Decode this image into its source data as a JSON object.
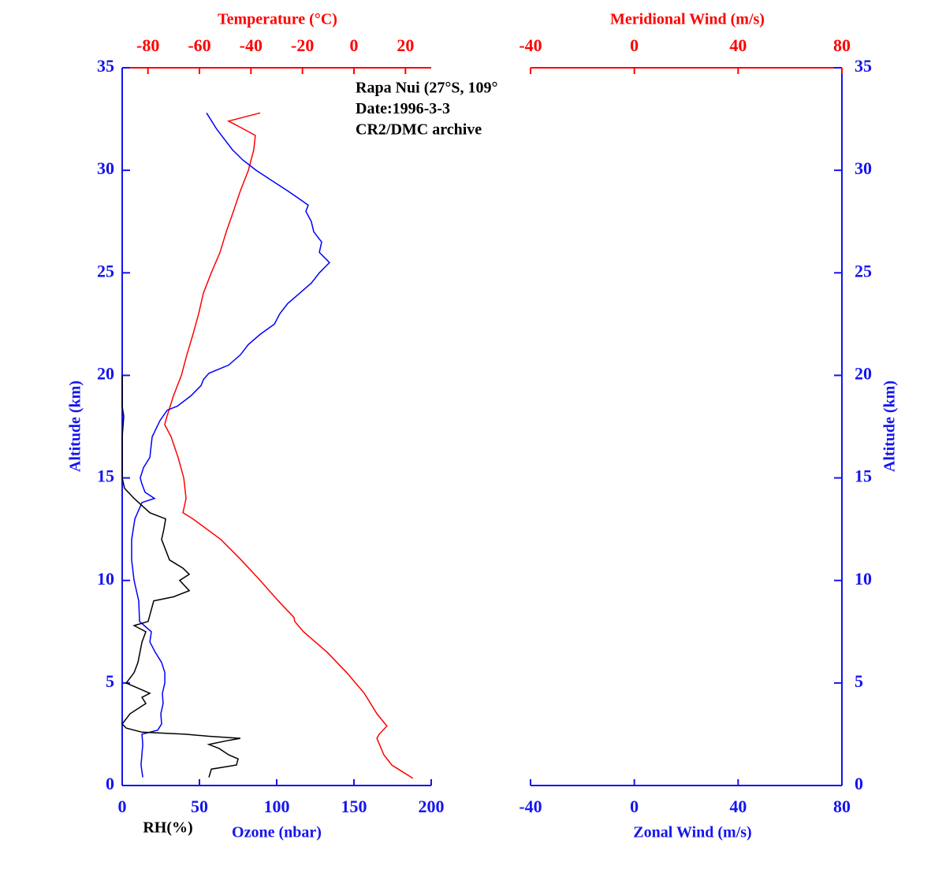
{
  "chart_data": [
    {
      "type": "line",
      "ylabel": "Altitude (km)",
      "ylim": [
        0,
        35
      ],
      "yticks": [
        0,
        5,
        10,
        15,
        20,
        25,
        30,
        35
      ],
      "xlabel": "Ozone (nbar)",
      "xlim": [
        0,
        200
      ],
      "xticks": [
        0,
        50,
        100,
        150,
        200
      ],
      "x2label": "Temperature (°C)",
      "x2lim": [
        -90,
        30
      ],
      "x2ticks": [
        -80,
        -60,
        -40,
        -20,
        0,
        20
      ],
      "annotations": [
        "Rapa Nui (27°S, 109°",
        "Date:1996-3-3",
        "CR2/DMC archive"
      ],
      "series": [
        {
          "color": "#ff0000",
          "axis": "x2",
          "y": [
            0.35,
            1.0,
            1.5,
            2.3,
            2.5,
            2.9,
            3.5,
            4.5,
            5.5,
            6.5,
            7.5,
            8.0,
            8.2,
            9,
            10,
            11,
            12,
            13,
            13.3,
            14,
            15,
            16,
            17,
            17.6,
            18,
            18.4,
            19,
            20,
            21,
            22,
            23,
            24,
            25,
            26,
            27,
            28,
            29,
            30,
            31,
            31.7,
            32.2,
            32.4,
            32.8
          ],
          "x": [
            22.9,
            14.7,
            11.6,
            8.9,
            9.8,
            12.8,
            8.9,
            4.0,
            -2.8,
            -10.4,
            -19.6,
            -23,
            -23.3,
            -29.4,
            -36.4,
            -43.8,
            -51.7,
            -62.5,
            -66.4,
            -65.2,
            -66.1,
            -68.3,
            -71,
            -73.5,
            -72.6,
            -71.6,
            -70.1,
            -67,
            -64.9,
            -62.5,
            -60.3,
            -58.5,
            -55.4,
            -52,
            -49.6,
            -46.8,
            -44.1,
            -41,
            -38.9,
            -38.3,
            -45.6,
            -48.7,
            -36.4
          ]
        },
        {
          "color": "#0000ff",
          "axis": "x",
          "y": [
            0.4,
            1,
            2,
            2.5,
            2.7,
            3,
            3.5,
            4,
            4.5,
            5,
            5.5,
            6,
            6.5,
            7,
            7.5,
            7.8,
            8,
            9,
            10,
            11,
            12,
            13,
            13.8,
            14,
            14.3,
            14.7,
            15,
            15.5,
            16,
            17,
            17.8,
            18.3,
            18.5,
            19,
            19.5,
            19.8,
            20.1,
            20.5,
            21,
            21.5,
            22,
            22.5,
            23,
            23.5,
            24,
            24.5,
            25,
            25.5,
            26,
            26.5,
            27,
            27.5,
            28,
            28.3,
            28.6,
            29,
            29.5,
            30,
            30.5,
            31,
            31.5,
            32,
            32.8
          ],
          "x": [
            13.3,
            12.2,
            13.3,
            12.8,
            23.0,
            25.5,
            25.0,
            26.5,
            26.0,
            27.6,
            27.6,
            25.5,
            21.4,
            17.9,
            18.9,
            14.3,
            11.2,
            10.7,
            7.7,
            6.1,
            6.1,
            8.2,
            12.8,
            20.9,
            14.8,
            12.8,
            11.7,
            13.8,
            17.9,
            19.4,
            24.5,
            29.1,
            35.7,
            44.4,
            51.0,
            52.6,
            56.1,
            68.9,
            76.5,
            81.6,
            89.3,
            98.5,
            102.0,
            107.1,
            114.8,
            122.4,
            127.6,
            134.2,
            127.6,
            129.1,
            124.0,
            122.4,
            118.9,
            120.4,
            114.8,
            107.1,
            96.9,
            86.7,
            78.1,
            71.4,
            66.3,
            61.2,
            54.6
          ]
        },
        {
          "name": "RH(%)",
          "color": "#000000",
          "axis": "x",
          "y": [
            0.4,
            0.8,
            1,
            1.3,
            1.5,
            1.8,
            2,
            2.2,
            2.3,
            2.4,
            2.5,
            2.6,
            2.8,
            3,
            3.5,
            4,
            4.3,
            4.5,
            5,
            5.5,
            6,
            7,
            7.5,
            7.8,
            8,
            9,
            9.2,
            9.5,
            10,
            10.3,
            10.6,
            11,
            12,
            12.5,
            13,
            13.3,
            14,
            14.5,
            15,
            17,
            18,
            18.5,
            20
          ],
          "x": [
            56.1,
            57.7,
            74.0,
            75.0,
            68.9,
            62.8,
            56.1,
            68.9,
            76.5,
            56.1,
            40.8,
            12.8,
            2.6,
            0,
            5.1,
            15.3,
            12.8,
            17.9,
            2.6,
            7.7,
            10.2,
            12.8,
            15.3,
            7.7,
            16.8,
            20.4,
            33.2,
            43.4,
            37.2,
            43.4,
            39.3,
            30.6,
            25.5,
            27.0,
            28.1,
            17.9,
            7.7,
            1.5,
            0,
            0,
            1.0,
            0,
            0
          ]
        }
      ]
    },
    {
      "type": "line",
      "ylabel": "Altitude (km)",
      "ylim": [
        0,
        35
      ],
      "yticks": [
        0,
        5,
        10,
        15,
        20,
        25,
        30,
        35
      ],
      "xlabel": "Zonal Wind (m/s)",
      "xlim": [
        -40,
        80
      ],
      "xticks": [
        -40,
        0,
        40,
        80
      ],
      "x2label": "Meridional Wind (m/s)",
      "x2lim": [
        -40,
        80
      ],
      "x2ticks": [
        -40,
        0,
        40,
        80
      ],
      "series": []
    }
  ]
}
